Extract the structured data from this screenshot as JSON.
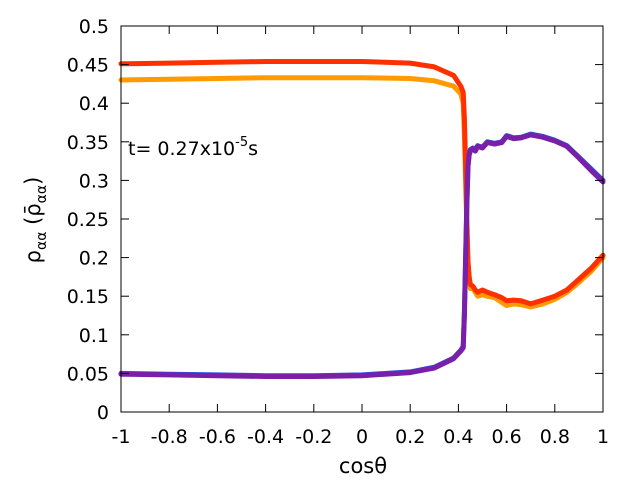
{
  "chart_data": {
    "type": "line",
    "xlabel": "cosθ",
    "ylabel": "ραα (ρ̄αα)",
    "ylabel_parts": {
      "main": "ρ",
      "sub": "αα",
      "paren_open": " (",
      "bar_main": "ρ̄",
      "bar_sub": "αα",
      "paren_close": ")"
    },
    "xlim": [
      -1,
      1
    ],
    "ylim": [
      0,
      0.5
    ],
    "xticks": [
      -1,
      -0.8,
      -0.6,
      -0.4,
      -0.2,
      0,
      0.2,
      0.4,
      0.6,
      0.8,
      1
    ],
    "xtick_labels": [
      "-1",
      "-0.8",
      "-0.6",
      "-0.4",
      "-0.2",
      "0",
      "0.2",
      "0.4",
      "0.6",
      "0.8",
      "1"
    ],
    "yticks": [
      0,
      0.05,
      0.1,
      0.15,
      0.2,
      0.25,
      0.3,
      0.35,
      0.4,
      0.45,
      0.5
    ],
    "ytick_labels": [
      "0",
      "0.05",
      "0.1",
      "0.15",
      "0.2",
      "0.25",
      "0.3",
      "0.35",
      "0.4",
      "0.45",
      "0.5"
    ],
    "grid": false,
    "legend": "none",
    "annotation": {
      "prefix": "t=  0.27x10",
      "exponent": "-5",
      "suffix": "s"
    },
    "series": [
      {
        "color": "#ff9a00",
        "x": [
          -1,
          -0.8,
          -0.6,
          -0.4,
          -0.2,
          0,
          0.2,
          0.3,
          0.38,
          0.41,
          0.42,
          0.425,
          0.43,
          0.435,
          0.44,
          0.445,
          0.45,
          0.46,
          0.47,
          0.48,
          0.5,
          0.52,
          0.55,
          0.58,
          0.6,
          0.63,
          0.66,
          0.7,
          0.75,
          0.8,
          0.85,
          0.9,
          0.95,
          1.0
        ],
        "y": [
          0.43,
          0.431,
          0.432,
          0.433,
          0.433,
          0.433,
          0.432,
          0.429,
          0.422,
          0.412,
          0.4,
          0.36,
          0.3,
          0.24,
          0.19,
          0.17,
          0.16,
          0.16,
          0.155,
          0.15,
          0.152,
          0.15,
          0.148,
          0.142,
          0.138,
          0.14,
          0.139,
          0.136,
          0.14,
          0.146,
          0.155,
          0.168,
          0.182,
          0.2
        ]
      },
      {
        "color": "#ff3000",
        "x": [
          -1,
          -0.8,
          -0.6,
          -0.4,
          -0.2,
          0,
          0.2,
          0.3,
          0.38,
          0.41,
          0.42,
          0.425,
          0.43,
          0.435,
          0.44,
          0.445,
          0.45,
          0.46,
          0.47,
          0.48,
          0.5,
          0.52,
          0.55,
          0.58,
          0.6,
          0.63,
          0.66,
          0.7,
          0.75,
          0.8,
          0.85,
          0.9,
          0.95,
          1.0
        ],
        "y": [
          0.451,
          0.452,
          0.453,
          0.454,
          0.454,
          0.454,
          0.452,
          0.447,
          0.436,
          0.422,
          0.414,
          0.38,
          0.32,
          0.25,
          0.195,
          0.175,
          0.165,
          0.163,
          0.158,
          0.155,
          0.158,
          0.155,
          0.152,
          0.148,
          0.144,
          0.145,
          0.144,
          0.14,
          0.145,
          0.15,
          0.158,
          0.172,
          0.186,
          0.203
        ]
      },
      {
        "color": "#2b4fe0",
        "x": [
          -1,
          -0.8,
          -0.6,
          -0.4,
          -0.2,
          0,
          0.2,
          0.3,
          0.38,
          0.41,
          0.42,
          0.425,
          0.43,
          0.435,
          0.44,
          0.445,
          0.45,
          0.46,
          0.47,
          0.48,
          0.5,
          0.52,
          0.55,
          0.58,
          0.6,
          0.63,
          0.66,
          0.7,
          0.75,
          0.8,
          0.85,
          0.9,
          0.95,
          1.0
        ],
        "y": [
          0.05,
          0.049,
          0.048,
          0.047,
          0.047,
          0.048,
          0.052,
          0.058,
          0.07,
          0.08,
          0.085,
          0.13,
          0.2,
          0.27,
          0.32,
          0.335,
          0.34,
          0.342,
          0.34,
          0.345,
          0.343,
          0.35,
          0.348,
          0.35,
          0.358,
          0.355,
          0.356,
          0.36,
          0.357,
          0.352,
          0.345,
          0.33,
          0.315,
          0.3
        ]
      },
      {
        "color": "#7a1fa8",
        "x": [
          -1,
          -0.8,
          -0.6,
          -0.4,
          -0.2,
          0,
          0.2,
          0.3,
          0.38,
          0.41,
          0.42,
          0.425,
          0.43,
          0.435,
          0.44,
          0.445,
          0.45,
          0.46,
          0.47,
          0.48,
          0.5,
          0.52,
          0.55,
          0.58,
          0.6,
          0.63,
          0.66,
          0.7,
          0.75,
          0.8,
          0.85,
          0.9,
          0.95,
          1.0
        ],
        "y": [
          0.049,
          0.048,
          0.047,
          0.046,
          0.046,
          0.047,
          0.051,
          0.057,
          0.069,
          0.079,
          0.083,
          0.125,
          0.195,
          0.265,
          0.318,
          0.333,
          0.338,
          0.341,
          0.338,
          0.344,
          0.342,
          0.349,
          0.347,
          0.349,
          0.357,
          0.354,
          0.355,
          0.359,
          0.356,
          0.351,
          0.344,
          0.329,
          0.313,
          0.298
        ]
      }
    ]
  }
}
